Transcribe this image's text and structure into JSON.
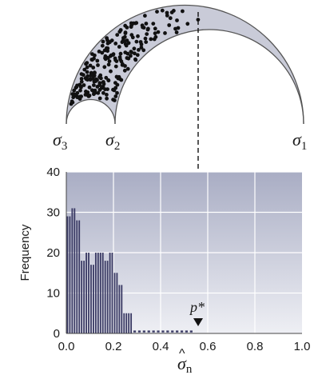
{
  "mohr": {
    "labels": [
      {
        "main": "σ",
        "sub": "3"
      },
      {
        "main": "σ",
        "sub": "2"
      },
      {
        "main": "σ",
        "sub": "1"
      }
    ],
    "colors": {
      "fill": "#c9cbd8",
      "stroke": "#555555",
      "point": "#111111"
    }
  },
  "chart_data": {
    "type": "bar",
    "ylabel": "Frequency",
    "xlabel_main": "σ",
    "xlabel_sub": "n",
    "xlabel_accent": "^",
    "xlim": [
      0,
      1.0
    ],
    "ylim": [
      0,
      40
    ],
    "xticks": [
      "0.0",
      "0.2",
      "0.4",
      "0.6",
      "0.8",
      "1.0"
    ],
    "yticks": [
      "0",
      "10",
      "20",
      "30",
      "40"
    ],
    "bin_width": 0.01,
    "x": [
      0.0,
      0.01,
      0.02,
      0.03,
      0.04,
      0.05,
      0.06,
      0.07,
      0.08,
      0.09,
      0.1,
      0.11,
      0.12,
      0.13,
      0.14,
      0.15,
      0.16,
      0.17,
      0.18,
      0.19,
      0.2,
      0.21,
      0.22,
      0.23,
      0.24,
      0.25,
      0.26,
      0.27
    ],
    "values": [
      29,
      29,
      31,
      31,
      28,
      28,
      18,
      18,
      20,
      20,
      17,
      17,
      20,
      20,
      20,
      20,
      18,
      18,
      20,
      20,
      15,
      15,
      12,
      12,
      5,
      5,
      5,
      5
    ],
    "tail_x": [
      0.29,
      0.31,
      0.33,
      0.35,
      0.37,
      0.39,
      0.41,
      0.43,
      0.45,
      0.47,
      0.49,
      0.51,
      0.53
    ],
    "tail_value": 0.4,
    "marker": {
      "label": "p*",
      "x": 0.555
    },
    "colors": {
      "bar": "#3a3a64",
      "grad_top": "#a9adc4",
      "grad_bottom": "#eeeff4",
      "grid": "#ffffff"
    }
  }
}
